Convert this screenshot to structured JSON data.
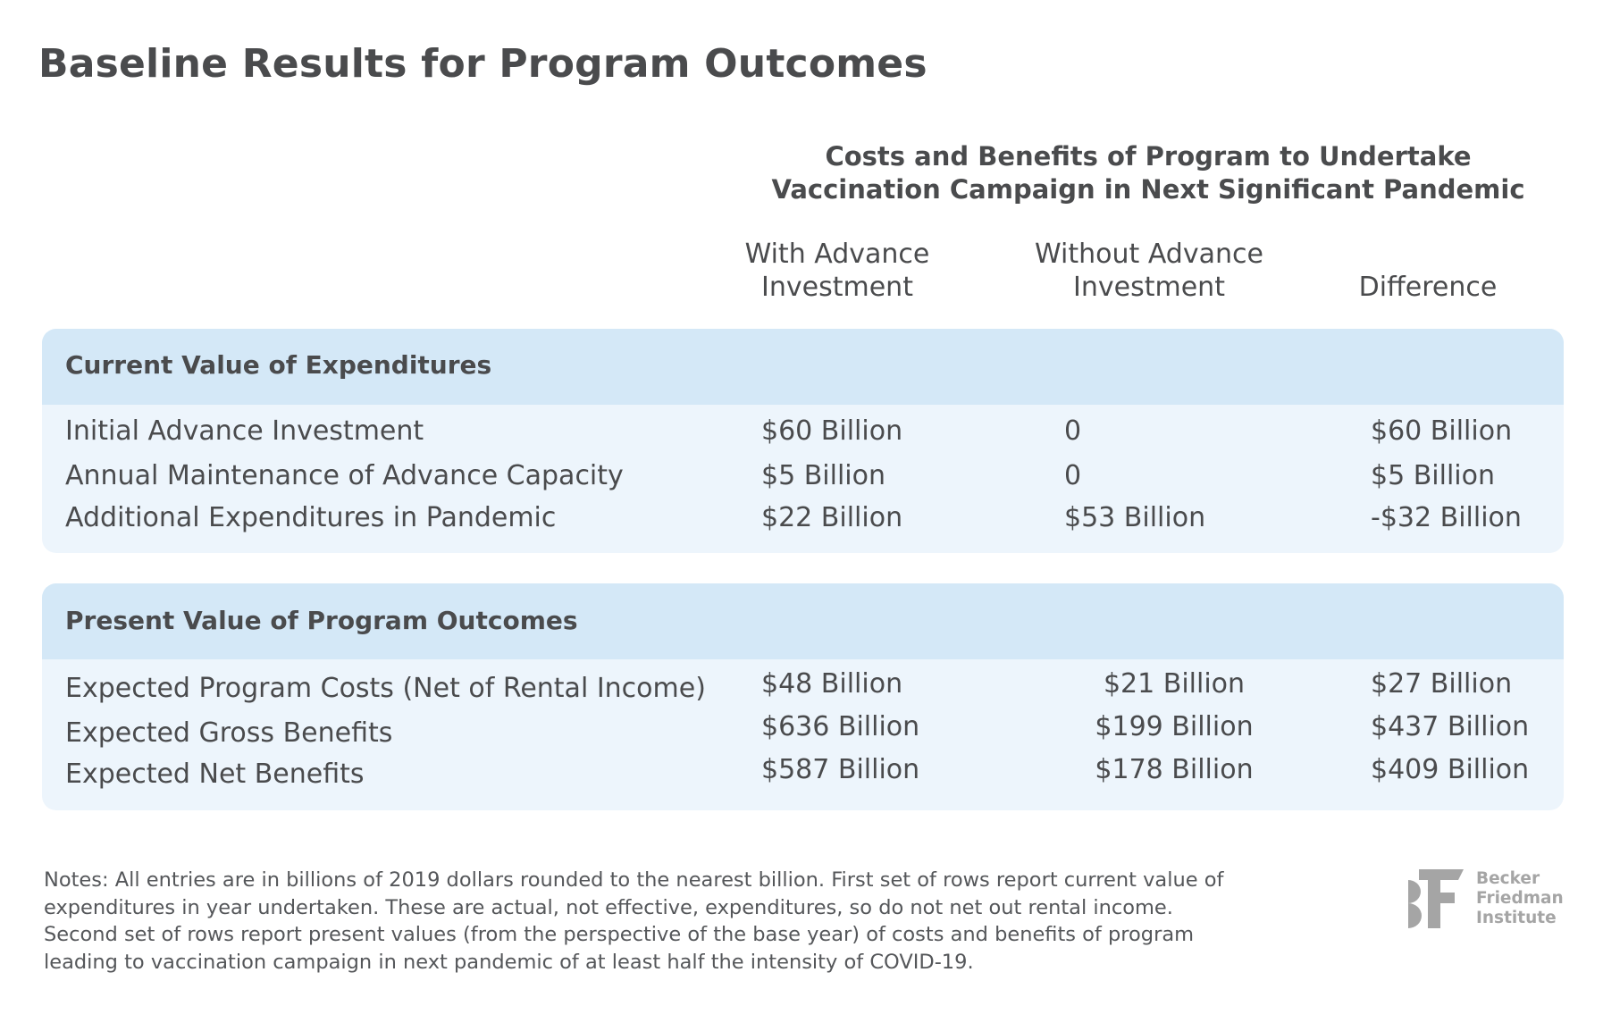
{
  "title": "Baseline Results for Program Outcomes",
  "super_header": [
    "Costs and Benefits of Program to Undertake",
    "Vaccination Campaign in Next Significant Pandemic"
  ],
  "columns": [
    {
      "line1": "With Advance",
      "line2": "Investment"
    },
    {
      "line1": "Without Advance",
      "line2": "Investment"
    },
    {
      "line1": "",
      "line2": "Difference"
    }
  ],
  "sections": [
    {
      "header": "Current Value of Expenditures",
      "rows": [
        {
          "label": "Initial Advance Investment",
          "with": "$60 Billion",
          "without": "0",
          "difference": "$60 Billion"
        },
        {
          "label": "Annual Maintenance of Advance Capacity",
          "with": "$5 Billion",
          "without": "0",
          "difference": "$5 Billion"
        },
        {
          "label": "Additional Expenditures in Pandemic",
          "with": "$22 Billion",
          "without": "$53 Billion",
          "difference": "-$32 Billion"
        }
      ]
    },
    {
      "header": "Present Value of Program Outcomes",
      "rows": [
        {
          "label": "Expected Program Costs (Net of Rental Income)",
          "with": "$48 Billion",
          "without": "$21 Billion",
          "difference": "$27 Billion"
        },
        {
          "label": "Expected Gross Benefits",
          "with": "$636 Billion",
          "without": "$199 Billion",
          "difference": "$437 Billion"
        },
        {
          "label": "Expected Net Benefits",
          "with": "$587 Billion",
          "without": "$178 Billion",
          "difference": "$409 Billion"
        }
      ]
    }
  ],
  "notes": "Notes: All entries are in billions of 2019 dollars rounded to the nearest billion. First set of rows report current value of expenditures in year undertaken. These are actual, not effective, expenditures, so do not net out rental income. Second set of rows report present values (from the perspective of the base year) of costs and benefits of program leading to vaccination campaign in next pandemic of at least half the intensity of COVID-19.",
  "logo": {
    "mark": "BF",
    "lines": [
      "Becker",
      "Friedman",
      "Institute"
    ]
  },
  "colors": {
    "text": "#4a4b4d",
    "band": "#d4e8f7",
    "panel": "#edf5fc",
    "logo": "#a5a5a5"
  }
}
